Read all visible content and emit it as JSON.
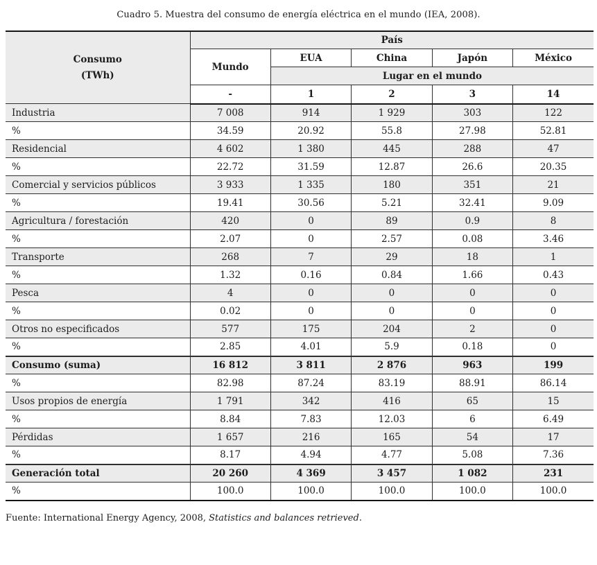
{
  "page": {
    "title": "Cuadro 5. Muestra del consumo de energía eléctrica en el mundo (IEA, 2008)."
  },
  "colors": {
    "row_shade": "#ebebeb",
    "rule": "#2e2e2e",
    "heavy_rule": "#151515"
  },
  "table": {
    "corner": {
      "line1": "Consumo",
      "line2": "(TWh)"
    },
    "pais_header": "País",
    "mundo_header": "Mundo",
    "countries": [
      "EUA",
      "China",
      "Japón",
      "México"
    ],
    "lugar_header": "Lugar en el mundo",
    "ranks": [
      "-",
      "1",
      "2",
      "3",
      "14"
    ],
    "rows": [
      {
        "label": "Industria",
        "values": [
          "7 008",
          "914",
          "1 929",
          "303",
          "122"
        ],
        "bold": false,
        "shaded": true
      },
      {
        "label": "%",
        "values": [
          "34.59",
          "20.92",
          "55.8",
          "27.98",
          "52.81"
        ],
        "bold": false,
        "shaded": false
      },
      {
        "label": "Residencial",
        "values": [
          "4 602",
          "1 380",
          "445",
          "288",
          "47"
        ],
        "bold": false,
        "shaded": true
      },
      {
        "label": "%",
        "values": [
          "22.72",
          "31.59",
          "12.87",
          "26.6",
          "20.35"
        ],
        "bold": false,
        "shaded": false
      },
      {
        "label": "Comercial y servicios públicos",
        "values": [
          "3 933",
          "1 335",
          "180",
          "351",
          "21"
        ],
        "bold": false,
        "shaded": true
      },
      {
        "label": "%",
        "values": [
          "19.41",
          "30.56",
          "5.21",
          "32.41",
          "9.09"
        ],
        "bold": false,
        "shaded": false
      },
      {
        "label": "Agricultura / forestación",
        "values": [
          "420",
          "0",
          "89",
          "0.9",
          "8"
        ],
        "bold": false,
        "shaded": true
      },
      {
        "label": "%",
        "values": [
          "2.07",
          "0",
          "2.57",
          "0.08",
          "3.46"
        ],
        "bold": false,
        "shaded": false
      },
      {
        "label": "Transporte",
        "values": [
          "268",
          "7",
          "29",
          "18",
          "1"
        ],
        "bold": false,
        "shaded": true
      },
      {
        "label": "%",
        "values": [
          "1.32",
          "0.16",
          "0.84",
          "1.66",
          "0.43"
        ],
        "bold": false,
        "shaded": false
      },
      {
        "label": "Pesca",
        "values": [
          "4",
          "0",
          "0",
          "0",
          "0"
        ],
        "bold": false,
        "shaded": true
      },
      {
        "label": "%",
        "values": [
          "0.02",
          "0",
          "0",
          "0",
          "0"
        ],
        "bold": false,
        "shaded": false
      },
      {
        "label": "Otros no especificados",
        "values": [
          "577",
          "175",
          "204",
          "2",
          "0"
        ],
        "bold": false,
        "shaded": true
      },
      {
        "label": "%",
        "values": [
          "2.85",
          "4.01",
          "5.9",
          "0.18",
          "0"
        ],
        "bold": false,
        "shaded": false
      },
      {
        "label": "Consumo (suma)",
        "values": [
          "16 812",
          "3 811",
          "2 876",
          "963",
          "199"
        ],
        "bold": true,
        "shaded": true
      },
      {
        "label": "%",
        "values": [
          "82.98",
          "87.24",
          "83.19",
          "88.91",
          "86.14"
        ],
        "bold": false,
        "shaded": false
      },
      {
        "label": "Usos propios de energía",
        "values": [
          "1 791",
          "342",
          "416",
          "65",
          "15"
        ],
        "bold": false,
        "shaded": true
      },
      {
        "label": "%",
        "values": [
          "8.84",
          "7.83",
          "12.03",
          "6",
          "6.49"
        ],
        "bold": false,
        "shaded": false
      },
      {
        "label": "Pérdidas",
        "values": [
          "1 657",
          "216",
          "165",
          "54",
          "17"
        ],
        "bold": false,
        "shaded": true
      },
      {
        "label": "%",
        "values": [
          "8.17",
          "4.94",
          "4.77",
          "5.08",
          "7.36"
        ],
        "bold": false,
        "shaded": false
      },
      {
        "label": "Generación total",
        "values": [
          "20 260",
          "4 369",
          "3 457",
          "1 082",
          "231"
        ],
        "bold": true,
        "shaded": true
      },
      {
        "label": "%",
        "values": [
          "100.0",
          "100.0",
          "100.0",
          "100.0",
          "100.0"
        ],
        "bold": false,
        "shaded": false
      }
    ]
  },
  "footer": {
    "normal": "Fuente: International Energy Agency, 2008, ",
    "italic": "Statistics and balances retrieved",
    "end": "."
  }
}
